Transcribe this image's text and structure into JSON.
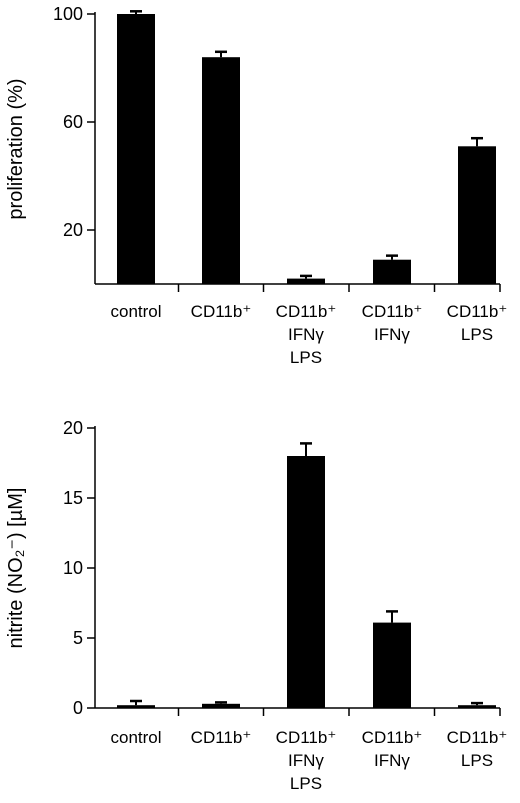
{
  "chart_data": [
    {
      "type": "bar",
      "categories": [
        [
          "control"
        ],
        [
          "CD11b⁺"
        ],
        [
          "CD11b⁺",
          "IFNγ",
          "LPS"
        ],
        [
          "CD11b⁺",
          "IFNγ"
        ],
        [
          "CD11b⁺",
          "LPS"
        ]
      ],
      "values": [
        100,
        84,
        2,
        9,
        51
      ],
      "errors": [
        1,
        2,
        1,
        1.5,
        3
      ],
      "ylabel": "proliferation (%)",
      "ylim": [
        0,
        100
      ],
      "yticks": [
        20,
        60,
        100
      ],
      "grid": false,
      "color": "#000000"
    },
    {
      "type": "bar",
      "categories": [
        [
          "control"
        ],
        [
          "CD11b⁺"
        ],
        [
          "CD11b⁺",
          "IFNγ",
          "LPS"
        ],
        [
          "CD11b⁺",
          "IFNγ"
        ],
        [
          "CD11b⁺",
          "LPS"
        ]
      ],
      "values": [
        0.2,
        0.3,
        18,
        6.1,
        0.2
      ],
      "errors": [
        0.3,
        0.1,
        0.9,
        0.8,
        0.15
      ],
      "ylabel": "nitrite (NO₂⁻)  [µM]",
      "ylim": [
        0,
        20
      ],
      "yticks": [
        0,
        5,
        10,
        15,
        20
      ],
      "grid": false,
      "color": "#000000"
    }
  ]
}
